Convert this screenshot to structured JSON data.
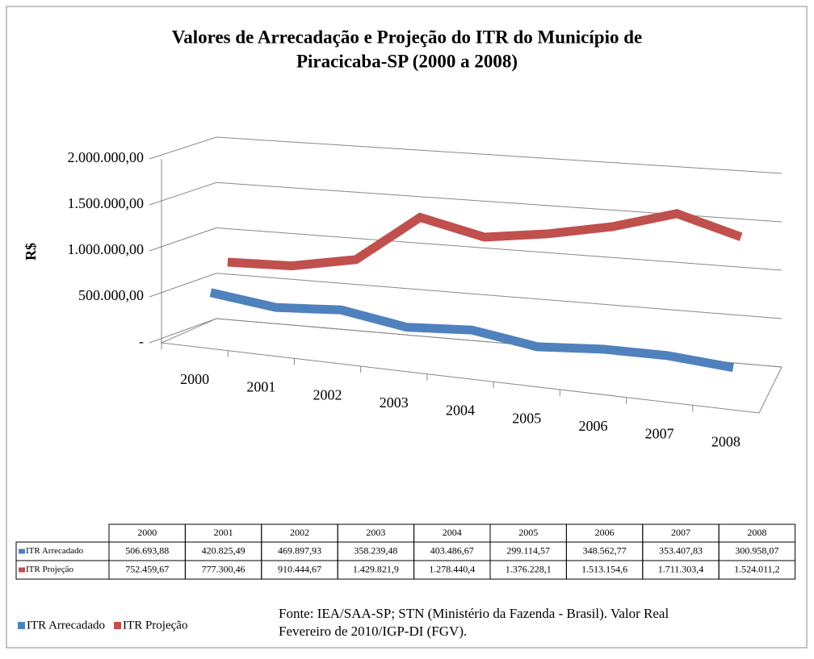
{
  "chart_data": {
    "type": "line3d",
    "title": [
      "Valores de Arrecadação e Projeção do ITR do Município de",
      "Piracicaba-SP (2000 a 2008)"
    ],
    "ylabel": "R$",
    "categories": [
      "2000",
      "2001",
      "2002",
      "2003",
      "2004",
      "2005",
      "2006",
      "2007",
      "2008"
    ],
    "series": [
      {
        "name": "ITR Arrecadado",
        "color": "#4f81bd",
        "values": [
          506693.88,
          420825.49,
          469897.93,
          358239.48,
          403486.67,
          299114.57,
          348562.77,
          353407.83,
          300958.07
        ],
        "value_labels": [
          "506.693,88",
          "420.825,49",
          "469.897,93",
          "358.239,48",
          "403.486,67",
          "299.114,57",
          "348.562,77",
          "353.407,83",
          "300.958,07"
        ]
      },
      {
        "name": "ITR Projeção",
        "color": "#c0504d",
        "values": [
          752459.67,
          777300.46,
          910444.67,
          1429821.9,
          1278440.4,
          1376228.1,
          1513154.6,
          1711303.4,
          1524011.2
        ],
        "value_labels": [
          "752.459,67",
          "777.300,46",
          "910.444,67",
          "1.429.821,9",
          "1.278.440,4",
          "1.376.228,1",
          "1.513.154,6",
          "1.711.303,4",
          "1.524.011,2"
        ]
      }
    ],
    "ylim": [
      0,
      2000000
    ],
    "yticks": [
      {
        "value": 0,
        "label": "-"
      },
      {
        "value": 500000,
        "label": "500.000,00"
      },
      {
        "value": 1000000,
        "label": "1.000.000,00"
      },
      {
        "value": 1500000,
        "label": "1.500.000,00"
      },
      {
        "value": 2000000,
        "label": "2.000.000,00"
      }
    ],
    "grid": true,
    "source": [
      "Fonte: IEA/SAA-SP; STN (Ministério da Fazenda - Brasil). Valor Real",
      "Fevereiro de 2010/IGP-DI (FGV)."
    ]
  }
}
